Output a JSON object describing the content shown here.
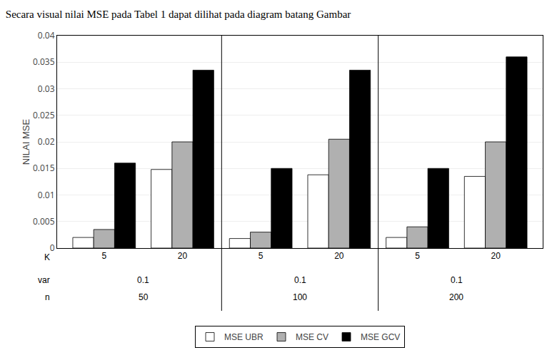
{
  "chart_data": {
    "type": "bar",
    "title": "Secara visual nilai MSE pada Tabel 1 dapat dilihat pada diagram batang Gambar",
    "ylabel": "NILAI MSE",
    "xlabel": "K",
    "categories": [
      "5",
      "20",
      "5",
      "20",
      "5",
      "20"
    ],
    "annotations": [
      {
        "text": "var",
        "labels": [
          "0.1",
          "0.1",
          "0.1"
        ]
      },
      {
        "text": "n",
        "labels": [
          "50",
          "100",
          "200"
        ]
      }
    ],
    "series": [
      {
        "name": "MSE UBR",
        "color": "white",
        "values": [
          0.002,
          0.0148,
          0.0018,
          0.0138,
          0.002,
          0.0135
        ]
      },
      {
        "name": "MSE CV",
        "color": "#b0b0b0",
        "values": [
          0.0035,
          0.02,
          0.003,
          0.0205,
          0.004,
          0.02
        ]
      },
      {
        "name": "MSE GCV",
        "color": "black",
        "values": [
          0.016,
          0.0335,
          0.015,
          0.0335,
          0.015,
          0.036
        ]
      }
    ],
    "ylim": [
      0,
      0.04
    ],
    "yticks": [
      0,
      0.005,
      0.01,
      0.015,
      0.02,
      0.025,
      0.03,
      0.035,
      0.04
    ],
    "grid": true,
    "legend": "bottom"
  }
}
